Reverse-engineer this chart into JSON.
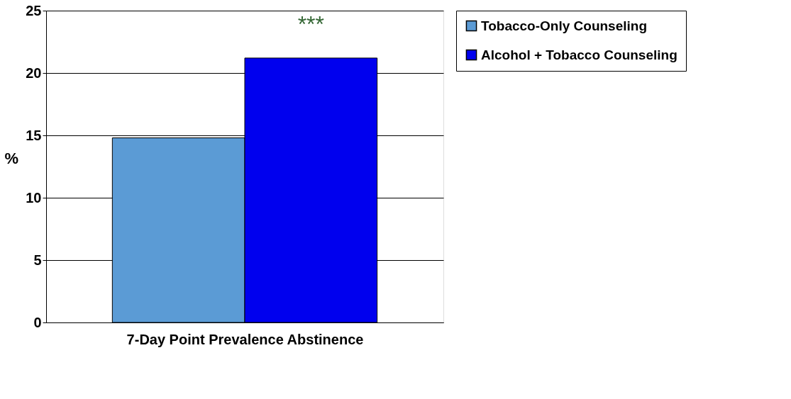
{
  "chart_data": {
    "type": "bar",
    "xlabel": "7-Day Point Prevalence Abstinence",
    "ylabel": "%",
    "categories": [
      null
    ],
    "series": [
      {
        "name": "Tobacco-Only Counseling",
        "color": "#5b9bd5",
        "values": [
          14.8
        ]
      },
      {
        "name": "Alcohol + Tobacco Counseling",
        "color": "#0000ee",
        "values": [
          21.2
        ]
      }
    ],
    "ylim": [
      0,
      25
    ],
    "yticks": [
      0,
      5,
      10,
      15,
      20,
      25
    ],
    "grid": "y",
    "legend": "right",
    "tick_labels": "y",
    "annotations": [
      "***"
    ]
  }
}
